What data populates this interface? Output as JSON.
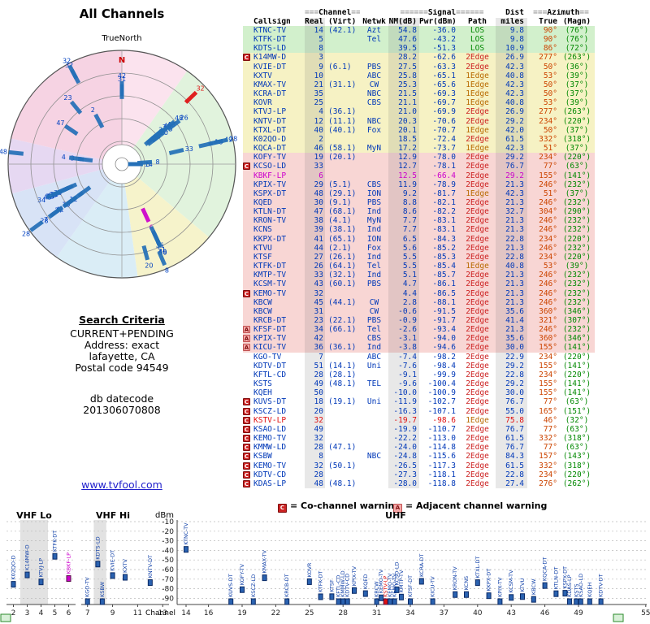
{
  "page": {
    "radar_title": "All Channels",
    "true_north_label": "TrueNorth",
    "north_letter": "N",
    "search": {
      "title": "Search Criteria",
      "lines": [
        "CURRENT+PENDING",
        "Address: exact",
        "lafayette, CA",
        "Postal code 94549"
      ],
      "datecode_label": "db datecode",
      "datecode": "201306070808",
      "link": "www.tvfool.com"
    },
    "legend": {
      "co_symbol": "C",
      "co_text": "= Co-channel warning",
      "adj_symbol": "A",
      "adj_text": "= Adjacent channel warning"
    }
  },
  "hdr": {
    "channel": {
      "pre": "===",
      "label": "Channel",
      "post": "==="
    },
    "signal": {
      "pre": "======",
      "label": "Signal",
      "post": "======"
    },
    "dist": "Dist",
    "azimuth": {
      "pre": "===",
      "label": "Azimuth",
      "post": "=="
    },
    "cols": [
      "Callsign",
      "Real",
      "(Virt)",
      "Netwk",
      "NM(dB)",
      "Pwr(dBm)",
      "Path",
      "miles",
      "True",
      "(Magn)"
    ]
  },
  "colors": {
    "data_text": "#0038b8",
    "los": "#008800",
    "edge1": "#b86a00",
    "edge2": "#cc2020",
    "true_az": "#cc4400",
    "magn_az": "#008800",
    "co_warn": "#cc2222",
    "adj_warn": "#f4a8a8",
    "bar_blue": "#2a62b0",
    "analog_magenta": "#cc00cc",
    "analog_red": "#e01010",
    "row_green": "#d2f0cc",
    "row_yellow": "#f6f2c4",
    "row_pink": "#f8d6d4"
  },
  "chart_data": {
    "type": "table",
    "title": "All Channels",
    "band_chart": {
      "ylabel": "dBm",
      "xlabel": "Channel",
      "y_ticks": [
        -10,
        -20,
        -30,
        -40,
        -50,
        -60,
        -70,
        -80,
        -90
      ],
      "band_labels": [
        "VHF Lo",
        "VHF Hi",
        "UHF"
      ],
      "x_ticks_lo": [
        2,
        3,
        4,
        5,
        6
      ],
      "x_ticks_hi": [
        7,
        9,
        11,
        13
      ],
      "x_ticks_uhf": [
        14,
        16,
        19,
        22,
        25,
        28,
        31,
        34,
        37,
        40,
        43,
        46,
        49,
        55
      ]
    },
    "stations": [
      {
        "callsign": "KTNC-TV",
        "real": 14,
        "virt": "(42.1)",
        "netwk": "Azt",
        "nm_db": "54.8",
        "pwr_dbm": "-36.0",
        "path": "LOS",
        "miles": "9.8",
        "az_true": "90°",
        "az_magn": "(76°)",
        "warn": "",
        "ink": ""
      },
      {
        "callsign": "KTFK-DT",
        "real": 5,
        "virt": "",
        "netwk": "Tel",
        "nm_db": "47.6",
        "pwr_dbm": "-43.2",
        "path": "LOS",
        "miles": "9.8",
        "az_true": "90°",
        "az_magn": "(76°)",
        "warn": "",
        "ink": ""
      },
      {
        "callsign": "KDTS-LD",
        "real": 8,
        "virt": "",
        "netwk": "",
        "nm_db": "39.5",
        "pwr_dbm": "-51.3",
        "path": "LOS",
        "miles": "10.9",
        "az_true": "86°",
        "az_magn": "(72°)",
        "warn": "",
        "ink": ""
      },
      {
        "callsign": "K14MW-D",
        "real": 3,
        "virt": "",
        "netwk": "",
        "nm_db": "28.2",
        "pwr_dbm": "-62.6",
        "path": "2Edge",
        "miles": "26.9",
        "az_true": "277°",
        "az_magn": "(263°)",
        "warn": "C",
        "ink": ""
      },
      {
        "callsign": "KVIE-DT",
        "real": 9,
        "virt": "(6.1)",
        "netwk": "PBS",
        "nm_db": "27.5",
        "pwr_dbm": "-63.3",
        "path": "2Edge",
        "miles": "42.3",
        "az_true": "50°",
        "az_magn": "(36°)",
        "warn": "",
        "ink": ""
      },
      {
        "callsign": "KXTV",
        "real": 10,
        "virt": "",
        "netwk": "ABC",
        "nm_db": "25.8",
        "pwr_dbm": "-65.1",
        "path": "1Edge",
        "miles": "40.8",
        "az_true": "53°",
        "az_magn": "(39°)",
        "warn": "",
        "ink": ""
      },
      {
        "callsign": "KMAX-TV",
        "real": 21,
        "virt": "(31.1)",
        "netwk": "CW",
        "nm_db": "25.3",
        "pwr_dbm": "-65.6",
        "path": "1Edge",
        "miles": "42.3",
        "az_true": "50°",
        "az_magn": "(37°)",
        "warn": "",
        "ink": ""
      },
      {
        "callsign": "KCRA-DT",
        "real": 35,
        "virt": "",
        "netwk": "NBC",
        "nm_db": "21.5",
        "pwr_dbm": "-69.3",
        "path": "1Edge",
        "miles": "42.3",
        "az_true": "50°",
        "az_magn": "(37°)",
        "warn": "",
        "ink": ""
      },
      {
        "callsign": "KOVR",
        "real": 25,
        "virt": "",
        "netwk": "CBS",
        "nm_db": "21.1",
        "pwr_dbm": "-69.7",
        "path": "1Edge",
        "miles": "40.8",
        "az_true": "53°",
        "az_magn": "(39°)",
        "warn": "",
        "ink": ""
      },
      {
        "callsign": "KTVJ-LP",
        "real": 4,
        "virt": "(36.1)",
        "netwk": "",
        "nm_db": "21.0",
        "pwr_dbm": "-69.9",
        "path": "2Edge",
        "miles": "26.9",
        "az_true": "277°",
        "az_magn": "(263°)",
        "warn": "",
        "ink": ""
      },
      {
        "callsign": "KNTV-DT",
        "real": 12,
        "virt": "(11.1)",
        "netwk": "NBC",
        "nm_db": "20.3",
        "pwr_dbm": "-70.6",
        "path": "2Edge",
        "miles": "29.2",
        "az_true": "234°",
        "az_magn": "(220°)",
        "warn": "",
        "ink": ""
      },
      {
        "callsign": "KTXL-DT",
        "real": 40,
        "virt": "(40.1)",
        "netwk": "Fox",
        "nm_db": "20.1",
        "pwr_dbm": "-70.7",
        "path": "1Edge",
        "miles": "42.0",
        "az_true": "50°",
        "az_magn": "(37°)",
        "warn": "",
        "ink": ""
      },
      {
        "callsign": "K02QO-D",
        "real": 2,
        "virt": "",
        "netwk": "",
        "nm_db": "18.5",
        "pwr_dbm": "-72.4",
        "path": "2Edge",
        "miles": "61.5",
        "az_true": "332°",
        "az_magn": "(318°)",
        "warn": "",
        "ink": ""
      },
      {
        "callsign": "KQCA-DT",
        "real": 46,
        "virt": "(58.1)",
        "netwk": "MyN",
        "nm_db": "17.2",
        "pwr_dbm": "-73.7",
        "path": "1Edge",
        "miles": "42.3",
        "az_true": "51°",
        "az_magn": "(37°)",
        "warn": "",
        "ink": ""
      },
      {
        "callsign": "KOFY-TV",
        "real": 19,
        "virt": "(20.1)",
        "netwk": "",
        "nm_db": "12.9",
        "pwr_dbm": "-78.0",
        "path": "2Edge",
        "miles": "29.2",
        "az_true": "234°",
        "az_magn": "(220°)",
        "warn": "",
        "ink": ""
      },
      {
        "callsign": "KCSO-LD",
        "real": 33,
        "virt": "",
        "netwk": "",
        "nm_db": "12.7",
        "pwr_dbm": "-78.1",
        "path": "2Edge",
        "miles": "76.7",
        "az_true": "77°",
        "az_magn": "(63°)",
        "warn": "C",
        "ink": ""
      },
      {
        "callsign": "KBKF-LP",
        "real": 6,
        "virt": "",
        "netwk": "",
        "nm_db": "12.5",
        "pwr_dbm": "-66.4",
        "path": "2Edge",
        "miles": "29.2",
        "az_true": "155°",
        "az_magn": "(141°)",
        "warn": "",
        "ink": "magenta"
      },
      {
        "callsign": "KPIX-TV",
        "real": 29,
        "virt": "(5.1)",
        "netwk": "CBS",
        "nm_db": "11.9",
        "pwr_dbm": "-78.9",
        "path": "2Edge",
        "miles": "21.3",
        "az_true": "246°",
        "az_magn": "(232°)",
        "warn": "",
        "ink": ""
      },
      {
        "callsign": "KSPX-DT",
        "real": 48,
        "virt": "(29.1)",
        "netwk": "ION",
        "nm_db": "9.2",
        "pwr_dbm": "-81.7",
        "path": "1Edge",
        "miles": "42.3",
        "az_true": "51°",
        "az_magn": "(37°)",
        "warn": "",
        "ink": ""
      },
      {
        "callsign": "KQED",
        "real": 30,
        "virt": "(9.1)",
        "netwk": "PBS",
        "nm_db": "8.8",
        "pwr_dbm": "-82.1",
        "path": "2Edge",
        "miles": "21.3",
        "az_true": "246°",
        "az_magn": "(232°)",
        "warn": "",
        "ink": ""
      },
      {
        "callsign": "KTLN-DT",
        "real": 47,
        "virt": "(68.1)",
        "netwk": "Ind",
        "nm_db": "8.6",
        "pwr_dbm": "-82.2",
        "path": "2Edge",
        "miles": "32.7",
        "az_true": "304°",
        "az_magn": "(290°)",
        "warn": "",
        "ink": ""
      },
      {
        "callsign": "KRON-TV",
        "real": 38,
        "virt": "(4.1)",
        "netwk": "MyN",
        "nm_db": "7.7",
        "pwr_dbm": "-83.1",
        "path": "2Edge",
        "miles": "21.3",
        "az_true": "246°",
        "az_magn": "(232°)",
        "warn": "",
        "ink": ""
      },
      {
        "callsign": "KCNS",
        "real": 39,
        "virt": "(38.1)",
        "netwk": "Ind",
        "nm_db": "7.7",
        "pwr_dbm": "-83.1",
        "path": "2Edge",
        "miles": "21.3",
        "az_true": "246°",
        "az_magn": "(232°)",
        "warn": "",
        "ink": ""
      },
      {
        "callsign": "KKPX-DT",
        "real": 41,
        "virt": "(65.1)",
        "netwk": "ION",
        "nm_db": "6.5",
        "pwr_dbm": "-84.3",
        "path": "2Edge",
        "miles": "22.8",
        "az_true": "234°",
        "az_magn": "(220°)",
        "warn": "",
        "ink": ""
      },
      {
        "callsign": "KTVU",
        "real": 44,
        "virt": "(2.1)",
        "netwk": "Fox",
        "nm_db": "5.6",
        "pwr_dbm": "-85.2",
        "path": "2Edge",
        "miles": "21.3",
        "az_true": "246°",
        "az_magn": "(232°)",
        "warn": "",
        "ink": ""
      },
      {
        "callsign": "KTSF",
        "real": 27,
        "virt": "(26.1)",
        "netwk": "Ind",
        "nm_db": "5.5",
        "pwr_dbm": "-85.3",
        "path": "2Edge",
        "miles": "22.8",
        "az_true": "234°",
        "az_magn": "(220°)",
        "warn": "",
        "ink": ""
      },
      {
        "callsign": "KTFK-DT",
        "real": 26,
        "virt": "(64.1)",
        "netwk": "Tel",
        "nm_db": "5.5",
        "pwr_dbm": "-85.4",
        "path": "1Edge",
        "miles": "40.8",
        "az_true": "53°",
        "az_magn": "(39°)",
        "warn": "",
        "ink": ""
      },
      {
        "callsign": "KMTP-TV",
        "real": 33,
        "virt": "(32.1)",
        "netwk": "Ind",
        "nm_db": "5.1",
        "pwr_dbm": "-85.7",
        "path": "2Edge",
        "miles": "21.3",
        "az_true": "246°",
        "az_magn": "(232°)",
        "warn": "",
        "ink": ""
      },
      {
        "callsign": "KCSM-TV",
        "real": 43,
        "virt": "(60.1)",
        "netwk": "PBS",
        "nm_db": "4.7",
        "pwr_dbm": "-86.1",
        "path": "2Edge",
        "miles": "21.3",
        "az_true": "246°",
        "az_magn": "(232°)",
        "warn": "",
        "ink": ""
      },
      {
        "callsign": "KEMO-TV",
        "real": 32,
        "virt": "",
        "netwk": "",
        "nm_db": "4.4",
        "pwr_dbm": "-86.5",
        "path": "2Edge",
        "miles": "21.3",
        "az_true": "246°",
        "az_magn": "(232°)",
        "warn": "C",
        "ink": ""
      },
      {
        "callsign": "KBCW",
        "real": 45,
        "virt": "(44.1)",
        "netwk": "CW",
        "nm_db": "2.8",
        "pwr_dbm": "-88.1",
        "path": "2Edge",
        "miles": "21.3",
        "az_true": "246°",
        "az_magn": "(232°)",
        "warn": "",
        "ink": ""
      },
      {
        "callsign": "KBCW",
        "real": 31,
        "virt": "",
        "netwk": "CW",
        "nm_db": "-0.6",
        "pwr_dbm": "-91.5",
        "path": "2Edge",
        "miles": "35.6",
        "az_true": "360°",
        "az_magn": "(346°)",
        "warn": "",
        "ink": ""
      },
      {
        "callsign": "KRCB-DT",
        "real": 23,
        "virt": "(22.1)",
        "netwk": "PBS",
        "nm_db": "-0.9",
        "pwr_dbm": "-91.7",
        "path": "2Edge",
        "miles": "41.4",
        "az_true": "321°",
        "az_magn": "(307°)",
        "warn": "",
        "ink": ""
      },
      {
        "callsign": "KFSF-DT",
        "real": 34,
        "virt": "(66.1)",
        "netwk": "Tel",
        "nm_db": "-2.6",
        "pwr_dbm": "-93.4",
        "path": "2Edge",
        "miles": "21.3",
        "az_true": "246°",
        "az_magn": "(232°)",
        "warn": "A",
        "ink": ""
      },
      {
        "callsign": "KPIX-TV",
        "real": 42,
        "virt": "",
        "netwk": "CBS",
        "nm_db": "-3.1",
        "pwr_dbm": "-94.0",
        "path": "2Edge",
        "miles": "35.6",
        "az_true": "360°",
        "az_magn": "(346°)",
        "warn": "A",
        "ink": ""
      },
      {
        "callsign": "KICU-TV",
        "real": 36,
        "virt": "(36.1)",
        "netwk": "Ind",
        "nm_db": "-3.8",
        "pwr_dbm": "-94.6",
        "path": "2Edge",
        "miles": "30.0",
        "az_true": "155°",
        "az_magn": "(141°)",
        "warn": "A",
        "ink": ""
      },
      {
        "callsign": "KGO-TV",
        "real": 7,
        "virt": "",
        "netwk": "ABC",
        "nm_db": "-7.4",
        "pwr_dbm": "-98.2",
        "path": "2Edge",
        "miles": "22.9",
        "az_true": "234°",
        "az_magn": "(220°)",
        "warn": "",
        "ink": ""
      },
      {
        "callsign": "KDTV-DT",
        "real": 51,
        "virt": "(14.1)",
        "netwk": "Uni",
        "nm_db": "-7.6",
        "pwr_dbm": "-98.4",
        "path": "2Edge",
        "miles": "29.2",
        "az_true": "155°",
        "az_magn": "(141°)",
        "warn": "",
        "ink": ""
      },
      {
        "callsign": "KFTL-CD",
        "real": 28,
        "virt": "(28.1)",
        "netwk": "",
        "nm_db": "-9.1",
        "pwr_dbm": "-99.9",
        "path": "2Edge",
        "miles": "22.8",
        "az_true": "234°",
        "az_magn": "(220°)",
        "warn": "",
        "ink": ""
      },
      {
        "callsign": "KSTS",
        "real": 49,
        "virt": "(48.1)",
        "netwk": "TEL",
        "nm_db": "-9.6",
        "pwr_dbm": "-100.4",
        "path": "2Edge",
        "miles": "29.2",
        "az_true": "155°",
        "az_magn": "(141°)",
        "warn": "",
        "ink": ""
      },
      {
        "callsign": "KQEH",
        "real": 50,
        "virt": "",
        "netwk": "",
        "nm_db": "-10.0",
        "pwr_dbm": "-100.9",
        "path": "2Edge",
        "miles": "30.0",
        "az_true": "155°",
        "az_magn": "(141°)",
        "warn": "",
        "ink": ""
      },
      {
        "callsign": "KUVS-DT",
        "real": 18,
        "virt": "(19.1)",
        "netwk": "Uni",
        "nm_db": "-11.9",
        "pwr_dbm": "-102.7",
        "path": "2Edge",
        "miles": "76.7",
        "az_true": "77°",
        "az_magn": "(63°)",
        "warn": "C",
        "ink": ""
      },
      {
        "callsign": "KSCZ-LD",
        "real": 20,
        "virt": "",
        "netwk": "",
        "nm_db": "-16.3",
        "pwr_dbm": "-107.1",
        "path": "2Edge",
        "miles": "55.0",
        "az_true": "165°",
        "az_magn": "(151°)",
        "warn": "C",
        "ink": ""
      },
      {
        "callsign": "KSTV-LP",
        "real": 32,
        "virt": "",
        "netwk": "",
        "nm_db": "-19.7",
        "pwr_dbm": "-98.6",
        "path": "1Edge",
        "miles": "75.8",
        "az_true": "46°",
        "az_magn": "(32°)",
        "warn": "C",
        "ink": "red"
      },
      {
        "callsign": "KSAO-LD",
        "real": 49,
        "virt": "",
        "netwk": "",
        "nm_db": "-19.9",
        "pwr_dbm": "-110.7",
        "path": "2Edge",
        "miles": "76.7",
        "az_true": "77°",
        "az_magn": "(63°)",
        "warn": "C",
        "ink": ""
      },
      {
        "callsign": "KEMO-TV",
        "real": 32,
        "virt": "",
        "netwk": "",
        "nm_db": "-22.2",
        "pwr_dbm": "-113.0",
        "path": "2Edge",
        "miles": "61.5",
        "az_true": "332°",
        "az_magn": "(318°)",
        "warn": "C",
        "ink": ""
      },
      {
        "callsign": "KMMW-LD",
        "real": 28,
        "virt": "(47.1)",
        "netwk": "",
        "nm_db": "-24.0",
        "pwr_dbm": "-114.8",
        "path": "2Edge",
        "miles": "76.7",
        "az_true": "77°",
        "az_magn": "(63°)",
        "warn": "C",
        "ink": ""
      },
      {
        "callsign": "KSBW",
        "real": 8,
        "virt": "",
        "netwk": "NBC",
        "nm_db": "-24.8",
        "pwr_dbm": "-115.6",
        "path": "2Edge",
        "miles": "84.3",
        "az_true": "157°",
        "az_magn": "(143°)",
        "warn": "C",
        "ink": ""
      },
      {
        "callsign": "KEMO-TV",
        "real": 32,
        "virt": "(50.1)",
        "netwk": "",
        "nm_db": "-26.5",
        "pwr_dbm": "-117.3",
        "path": "2Edge",
        "miles": "61.5",
        "az_true": "332°",
        "az_magn": "(318°)",
        "warn": "C",
        "ink": ""
      },
      {
        "callsign": "KDTV-CD",
        "real": 28,
        "virt": "",
        "netwk": "",
        "nm_db": "-27.3",
        "pwr_dbm": "-118.1",
        "path": "2Edge",
        "miles": "22.8",
        "az_true": "234°",
        "az_magn": "(220°)",
        "warn": "C",
        "ink": ""
      },
      {
        "callsign": "KDAS-LP",
        "real": 48,
        "virt": "(48.1)",
        "netwk": "",
        "nm_db": "-28.0",
        "pwr_dbm": "-118.8",
        "path": "2Edge",
        "miles": "27.4",
        "az_true": "276°",
        "az_magn": "(262°)",
        "warn": "C",
        "ink": ""
      }
    ]
  }
}
